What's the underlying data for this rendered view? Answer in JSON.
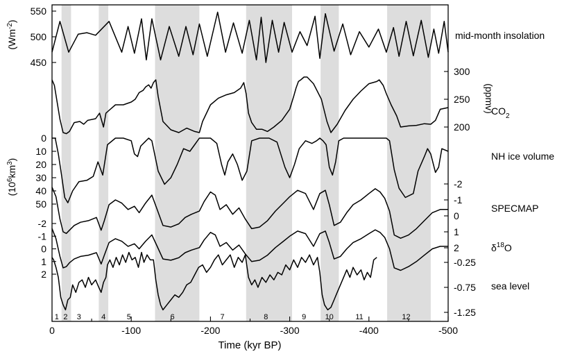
{
  "chart_data": {
    "type": "line",
    "xlabel": "Time (kyr BP)",
    "x_range": [
      0,
      -500
    ],
    "x_ticks": [
      "0",
      "-100",
      "-200",
      "-300",
      "-400",
      "-500"
    ],
    "glacial_bands_kyr": [
      [
        -12,
        -24
      ],
      [
        -59,
        -71
      ],
      [
        -130,
        -186
      ],
      [
        -245,
        -303
      ],
      [
        -339,
        -362
      ],
      [
        -423,
        -478
      ]
    ],
    "marine_stages": [
      "1",
      "2",
      "3",
      "4",
      "5",
      "6",
      "7",
      "8",
      "9",
      "10",
      "11",
      "12"
    ],
    "marine_stage_centers_kyr": [
      -6,
      -17,
      -34,
      -65,
      -97,
      -152,
      -215,
      -270,
      -318,
      -350,
      -388,
      -447
    ],
    "series": [
      {
        "name": "mid-month insolation",
        "unit": "(Wm-2)",
        "ticks": [
          "550",
          "500",
          "450"
        ],
        "axis_side": "left",
        "x": [
          0,
          -10,
          -21,
          -33,
          -44,
          -55,
          -72,
          -88,
          -96,
          -104,
          -113,
          -119,
          -126,
          -137,
          -148,
          -160,
          -169,
          -178,
          -186,
          -196,
          -209,
          -219,
          -229,
          -240,
          -249,
          -258,
          -264,
          -270,
          -278,
          -286,
          -293,
          -303,
          -313,
          -322,
          -332,
          -338,
          -345,
          -356,
          -367,
          -377,
          -388,
          -400,
          -412,
          -422,
          -431,
          -438,
          -447,
          -456,
          -466,
          -475,
          -482,
          -488,
          -495,
          -500
        ],
        "values": [
          470,
          530,
          470,
          505,
          508,
          503,
          530,
          470,
          520,
          468,
          535,
          455,
          535,
          455,
          520,
          462,
          520,
          465,
          525,
          462,
          548,
          470,
          527,
          468,
          532,
          455,
          538,
          450,
          532,
          470,
          528,
          470,
          510,
          483,
          540,
          458,
          545,
          472,
          525,
          465,
          510,
          480,
          515,
          470,
          518,
          462,
          530,
          463,
          532,
          460,
          515,
          468,
          530,
          470
        ]
      },
      {
        "name": "CO2",
        "unit": "(ppmv)",
        "ticks": [
          "300",
          "250",
          "200"
        ],
        "axis_side": "right",
        "x": [
          0,
          -3,
          -7,
          -10,
          -14,
          -18,
          -22,
          -28,
          -35,
          -40,
          -45,
          -55,
          -60,
          -65,
          -68,
          -72,
          -80,
          -90,
          -100,
          -105,
          -110,
          -115,
          -118,
          -122,
          -125,
          -128,
          -131,
          -134,
          -140,
          -150,
          -160,
          -170,
          -180,
          -186,
          -190,
          -200,
          -210,
          -220,
          -230,
          -238,
          -242,
          -245,
          -248,
          -252,
          -258,
          -265,
          -272,
          -280,
          -290,
          -300,
          -305,
          -308,
          -311,
          -314,
          -318,
          -322,
          -330,
          -340,
          -347,
          -352,
          -360,
          -370,
          -380,
          -390,
          -400,
          -410,
          -413,
          -418,
          -422,
          -428,
          -435,
          -440,
          -450,
          -460,
          -470,
          -478,
          -484,
          -490,
          -500
        ],
        "values": [
          285,
          275,
          240,
          214,
          190,
          188,
          192,
          208,
          210,
          205,
          212,
          215,
          225,
          200,
          225,
          230,
          240,
          240,
          245,
          250,
          262,
          266,
          272,
          276,
          270,
          280,
          285,
          255,
          210,
          195,
          190,
          198,
          192,
          190,
          210,
          240,
          252,
          258,
          262,
          270,
          280,
          260,
          225,
          208,
          196,
          196,
          192,
          200,
          212,
          232,
          255,
          270,
          282,
          285,
          290,
          290,
          278,
          250,
          210,
          190,
          205,
          230,
          250,
          265,
          278,
          282,
          285,
          275,
          260,
          240,
          220,
          200,
          202,
          203,
          206,
          205,
          212,
          232,
          235
        ]
      },
      {
        "name": "NH ice volume",
        "unit": "(10^6 km^3)",
        "ticks": [
          "0",
          "10",
          "20",
          "30",
          "40",
          "50"
        ],
        "axis_side": "left",
        "x": [
          0,
          -4,
          -8,
          -12,
          -16,
          -20,
          -26,
          -34,
          -44,
          -52,
          -58,
          -64,
          -70,
          -80,
          -90,
          -100,
          -104,
          -108,
          -112,
          -117,
          -122,
          -126,
          -134,
          -142,
          -150,
          -158,
          -166,
          -174,
          -180,
          -186,
          -190,
          -200,
          -208,
          -214,
          -218,
          -222,
          -228,
          -234,
          -240,
          -246,
          -252,
          -262,
          -274,
          -284,
          -294,
          -300,
          -306,
          -312,
          -320,
          -328,
          -334,
          -338,
          -342,
          -346,
          -350,
          -354,
          -358,
          -362,
          -368,
          -380,
          -400,
          -420,
          -422,
          -426,
          -432,
          -438,
          -446,
          -456,
          -462,
          -470,
          -474,
          -478,
          -484,
          -488,
          -492,
          -500
        ],
        "values": [
          0,
          0,
          12,
          28,
          45,
          49,
          40,
          33,
          32,
          29,
          18,
          28,
          5,
          0,
          0,
          2,
          12,
          14,
          6,
          3,
          0,
          2,
          25,
          35,
          30,
          20,
          8,
          10,
          5,
          0,
          0,
          0,
          4,
          20,
          28,
          18,
          12,
          20,
          32,
          25,
          2,
          0,
          0,
          3,
          22,
          30,
          20,
          8,
          2,
          4,
          2,
          0,
          2,
          5,
          22,
          28,
          18,
          2,
          0,
          0,
          0,
          0,
          0,
          2,
          24,
          38,
          45,
          42,
          25,
          14,
          8,
          12,
          26,
          22,
          8,
          10
        ]
      },
      {
        "name": "SPECMAP",
        "unit": "",
        "ticks": [
          "-2",
          "-1",
          "0",
          "1",
          "2"
        ],
        "axis_side": "right",
        "x": [
          0,
          -5,
          -10,
          -14,
          -18,
          -22,
          -28,
          -36,
          -46,
          -56,
          -62,
          -66,
          -72,
          -80,
          -88,
          -96,
          -104,
          -110,
          -118,
          -126,
          -132,
          -140,
          -150,
          -160,
          -168,
          -176,
          -186,
          -192,
          -200,
          -206,
          -212,
          -220,
          -228,
          -236,
          -244,
          -252,
          -262,
          -272,
          -282,
          -292,
          -300,
          -310,
          -320,
          -330,
          -338,
          -345,
          -350,
          -356,
          -364,
          -372,
          -380,
          -390,
          -400,
          -408,
          -414,
          -420,
          -426,
          -432,
          -440,
          -450,
          -460,
          -470,
          -480,
          -490,
          -500
        ],
        "values": [
          -1.8,
          -1.2,
          0.2,
          1.0,
          1.1,
          0.9,
          0.6,
          0.4,
          0.3,
          0.1,
          0.9,
          0.3,
          -0.7,
          -1.0,
          -0.8,
          -0.4,
          -0.6,
          -0.2,
          -0.8,
          -1.3,
          -0.5,
          0.6,
          0.7,
          0.5,
          0.1,
          -0.1,
          -0.3,
          -0.9,
          -1.5,
          -1.3,
          -0.4,
          -0.7,
          -0.1,
          -0.5,
          0.2,
          0.8,
          0.7,
          0.3,
          -0.3,
          -0.8,
          -1.2,
          -1.6,
          -1.4,
          -0.4,
          -1.4,
          -1.6,
          -0.7,
          0.6,
          0.4,
          -0.2,
          -0.7,
          -1.0,
          -1.4,
          -1.7,
          -1.5,
          -1.1,
          -0.3,
          1.2,
          1.4,
          1.2,
          0.8,
          0.3,
          -0.2,
          -0.4,
          -0.4
        ]
      },
      {
        "name": "δ18O",
        "unit": "",
        "ticks": [
          "-2",
          "-1",
          "0",
          "1",
          "2"
        ],
        "axis_side": "left",
        "x": [
          0,
          -5,
          -10,
          -14,
          -18,
          -22,
          -28,
          -36,
          -46,
          -56,
          -62,
          -66,
          -72,
          -80,
          -88,
          -96,
          -104,
          -110,
          -118,
          -126,
          -132,
          -140,
          -150,
          -160,
          -168,
          -176,
          -186,
          -192,
          -200,
          -206,
          -212,
          -220,
          -228,
          -236,
          -244,
          -252,
          -262,
          -272,
          -282,
          -292,
          -300,
          -310,
          -320,
          -330,
          -338,
          -345,
          -350,
          -356,
          -364,
          -372,
          -380,
          -390,
          -400,
          -408,
          -414,
          -420,
          -426,
          -432,
          -440,
          -450,
          -460,
          -470,
          -480,
          -490,
          -500
        ],
        "values": [
          -1.6,
          -0.8,
          0.6,
          1.5,
          1.4,
          1.1,
          0.8,
          0.6,
          0.5,
          0.3,
          1.2,
          0.5,
          -0.5,
          -0.8,
          -0.6,
          -0.2,
          -0.4,
          0.0,
          -0.6,
          -1.1,
          -0.3,
          0.8,
          0.9,
          0.7,
          0.3,
          0.1,
          -0.1,
          -0.7,
          -1.3,
          -1.1,
          -0.2,
          -0.5,
          0.1,
          -0.3,
          0.4,
          1.0,
          0.9,
          0.5,
          -0.1,
          -0.6,
          -1.0,
          -1.4,
          -1.2,
          -0.2,
          -1.2,
          -1.4,
          -0.5,
          0.8,
          0.6,
          0.0,
          -0.5,
          -0.8,
          -1.2,
          -1.5,
          -1.3,
          -0.9,
          0.0,
          1.5,
          1.7,
          1.4,
          1.0,
          0.5,
          0.0,
          -0.2,
          -0.2
        ]
      },
      {
        "name": "sea level",
        "unit": "",
        "ticks": [
          "-0.25",
          "-0.75",
          "-1.25"
        ],
        "axis_side": "right",
        "x": [
          0,
          -2,
          -5,
          -8,
          -11,
          -14,
          -17,
          -20,
          -23,
          -26,
          -30,
          -34,
          -38,
          -42,
          -46,
          -50,
          -55,
          -59,
          -62,
          -65,
          -68,
          -70,
          -73,
          -77,
          -81,
          -85,
          -89,
          -93,
          -97,
          -101,
          -105,
          -109,
          -113,
          -116,
          -120,
          -124,
          -128,
          -131,
          -134,
          -137,
          -140,
          -145,
          -150,
          -155,
          -160,
          -165,
          -170,
          -175,
          -180,
          -185,
          -190,
          -195,
          -200,
          -205,
          -210,
          -215,
          -220,
          -225,
          -230,
          -235,
          -240,
          -244,
          -248,
          -252,
          -256,
          -260,
          -265,
          -270,
          -275,
          -280,
          -285,
          -290,
          -295,
          -300,
          -305,
          -310,
          -315,
          -320,
          -325,
          -330,
          -335,
          -338,
          -341,
          -344,
          -348,
          -352,
          -356,
          -360,
          -364,
          -368,
          -372,
          -376,
          -380,
          -385,
          -390,
          -394,
          -398,
          -402,
          -406,
          -410
        ],
        "values": [
          -0.15,
          -0.2,
          -0.35,
          -0.55,
          -0.95,
          -1.1,
          -1.2,
          -1.0,
          -0.95,
          -0.7,
          -0.85,
          -0.65,
          -0.6,
          -0.75,
          -0.55,
          -0.7,
          -0.6,
          -0.75,
          -0.85,
          -0.65,
          -0.55,
          -0.3,
          -0.2,
          -0.35,
          -0.15,
          -0.3,
          -0.1,
          -0.25,
          -0.05,
          -0.2,
          -0.15,
          -0.35,
          -0.05,
          -0.25,
          -0.1,
          -0.2,
          -0.2,
          -0.6,
          -0.9,
          -1.1,
          -1.2,
          -1.1,
          -1.0,
          -0.9,
          -0.95,
          -0.85,
          -0.7,
          -0.65,
          -0.5,
          -0.35,
          -0.3,
          -0.45,
          -0.35,
          -0.2,
          -0.1,
          -0.3,
          -0.2,
          -0.1,
          -0.35,
          -0.15,
          -0.25,
          -0.1,
          -0.55,
          -0.7,
          -0.6,
          -0.75,
          -0.55,
          -0.65,
          -0.5,
          -0.6,
          -0.45,
          -0.5,
          -0.3,
          -0.4,
          -0.2,
          -0.35,
          -0.15,
          -0.25,
          -0.1,
          -0.3,
          -0.15,
          -0.45,
          -0.9,
          -1.1,
          -1.2,
          -1.15,
          -1.0,
          -0.85,
          -0.7,
          -0.55,
          -0.4,
          -0.55,
          -0.35,
          -0.5,
          -0.4,
          -0.6,
          -0.45,
          -0.55,
          -0.2,
          -0.15
        ]
      }
    ],
    "series_labels": {
      "insolation": "mid-month insolation",
      "co2": "CO",
      "co2_sub": "2",
      "ice": "NH ice volume",
      "specmap": "SPECMAP",
      "d18o_delta": "δ",
      "d18o_sup": "18",
      "d18o_o": "O",
      "sealevel": "sea level"
    },
    "units": {
      "insolation_base": "(Wm",
      "insolation_sup": "-2",
      "insolation_close": ")",
      "co2": "(ppmv)",
      "ice_base": "(10",
      "ice_sup1": "6",
      "ice_mid": "km",
      "ice_sup2": "3",
      "ice_close": ")"
    }
  }
}
